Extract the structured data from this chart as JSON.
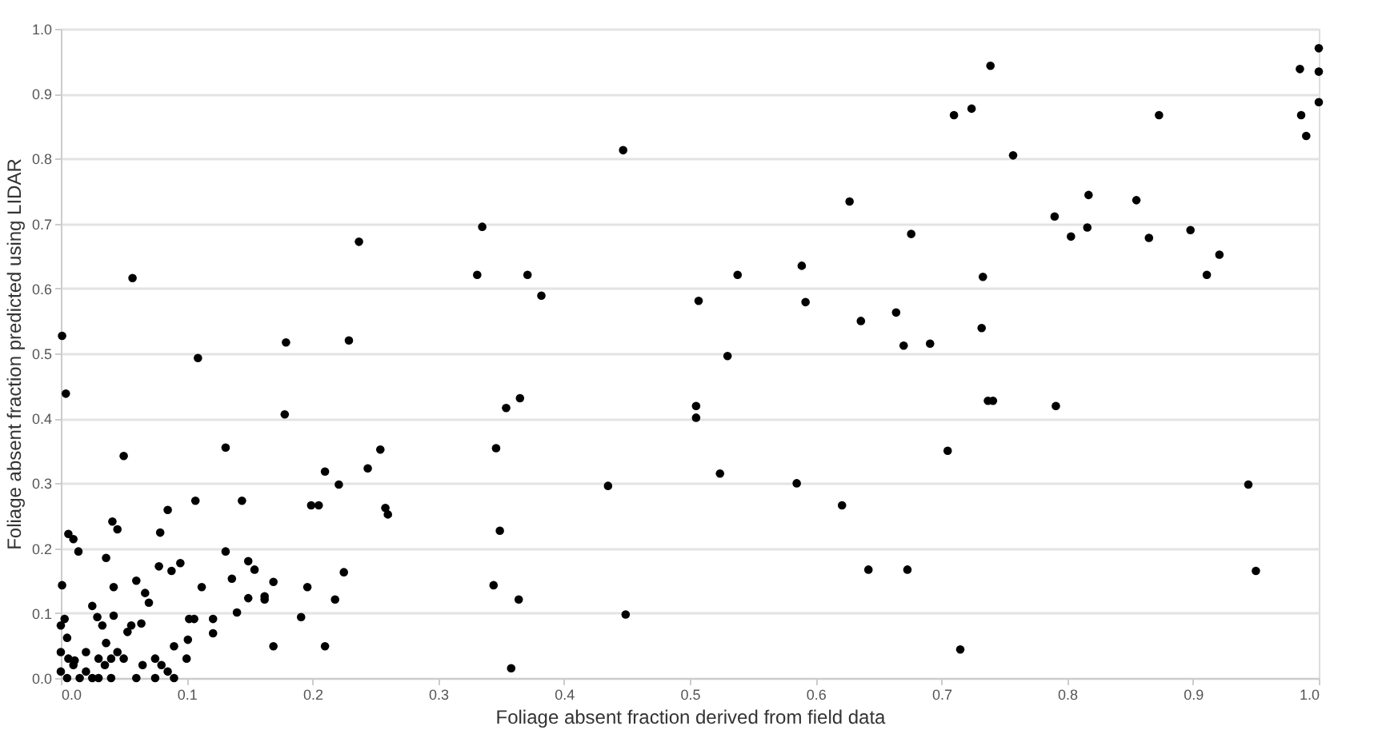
{
  "chart_data": {
    "type": "scatter",
    "xlabel": "Foliage absent fraction derived from field data",
    "ylabel": "Foliage absent fraction predicted using LIDAR",
    "grid": "y",
    "marker": "circle",
    "xlim": [
      0,
      1
    ],
    "ylim": [
      0,
      1
    ],
    "xticks": [
      {
        "value": 0,
        "label": "0.0"
      },
      {
        "value": 0.1,
        "label": "0.1"
      },
      {
        "value": 0.2,
        "label": "0.2"
      },
      {
        "value": 0.3,
        "label": "0.3"
      },
      {
        "value": 0.4,
        "label": "0.4"
      },
      {
        "value": 0.5,
        "label": "0.5"
      },
      {
        "value": 0.6,
        "label": "0.6"
      },
      {
        "value": 0.7,
        "label": "0.7"
      },
      {
        "value": 0.8,
        "label": "0.8"
      },
      {
        "value": 0.9,
        "label": "0.9"
      },
      {
        "value": 1,
        "label": "1.0"
      }
    ],
    "yticks": [
      {
        "value": 0,
        "label": "0.0"
      },
      {
        "value": 0.1,
        "label": "0.1"
      },
      {
        "value": 0.2,
        "label": "0.2"
      },
      {
        "value": 0.3,
        "label": "0.3"
      },
      {
        "value": 0.4,
        "label": "0.4"
      },
      {
        "value": 0.5,
        "label": "0.5"
      },
      {
        "value": 0.6,
        "label": "0.6"
      },
      {
        "value": 0.7,
        "label": "0.7"
      },
      {
        "value": 0.8,
        "label": "0.8"
      },
      {
        "value": 0.9,
        "label": "0.9"
      },
      {
        "value": 1,
        "label": "1.0"
      }
    ],
    "series": [
      {
        "color": "#000000",
        "x": [
          0.447,
          0.335,
          0.331,
          0.371,
          0.382,
          0.507,
          0.538,
          0.589,
          0.592,
          0.627,
          0.53,
          0.365,
          0.354,
          0.505,
          0.505,
          0.254,
          0.346,
          0.524,
          0.435,
          0.585,
          0.621,
          0.258,
          0.26,
          0.349,
          0.344,
          0.364,
          0.449,
          0.358,
          0.739,
          0.71,
          0.724,
          0.873,
          0.757,
          0.985,
          1.0,
          1.0,
          0.986,
          0.99,
          1.0,
          0.817,
          0.79,
          0.803,
          0.816,
          0.855,
          0.865,
          0.898,
          0.921,
          0.911,
          0.676,
          0.733,
          0.636,
          0.664,
          0.67,
          0.691,
          0.732,
          0.737,
          0.741,
          0.791,
          0.705,
          0.944,
          0.642,
          0.673,
          0.95,
          0.715,
          0.057,
          0.237,
          0.001,
          0.004,
          0.109,
          0.179,
          0.229,
          0.178,
          0.05,
          0.131,
          0.21,
          0.244,
          0.221,
          0.107,
          0.144,
          0.085,
          0.199,
          0.205,
          0.041,
          0.045,
          0.006,
          0.01,
          0.079,
          0.014,
          0.131,
          0.036,
          0.149,
          0.154,
          0.078,
          0.088,
          0.095,
          0.225,
          0.001,
          0.042,
          0.06,
          0.112,
          0.136,
          0.169,
          0.196,
          0.067,
          0.07,
          0.149,
          0.162,
          0.162,
          0.218,
          0.025,
          0.042,
          0.14,
          0.191,
          0.102,
          0.106,
          0.121,
          0.003,
          0.0,
          0.029,
          0.033,
          0.056,
          0.064,
          0.053,
          0.121,
          0.005,
          0.101,
          0.036,
          0.09,
          0.169,
          0.21,
          0.006,
          0.011,
          0.03,
          0.04,
          0.0,
          0.005,
          0.01,
          0.015,
          0.02,
          0.025,
          0.03,
          0.035,
          0.04,
          0.045,
          0.05,
          0.06,
          0.065,
          0.075,
          0.08,
          0.085,
          0.09,
          0.0,
          0.02,
          0.1,
          0.075
        ],
        "values": [
          0.813,
          0.695,
          0.621,
          0.621,
          0.589,
          0.581,
          0.621,
          0.635,
          0.579,
          0.734,
          0.496,
          0.431,
          0.416,
          0.419,
          0.401,
          0.352,
          0.354,
          0.315,
          0.296,
          0.3,
          0.266,
          0.262,
          0.252,
          0.227,
          0.143,
          0.121,
          0.098,
          0.015,
          0.943,
          0.867,
          0.877,
          0.867,
          0.805,
          0.938,
          0.97,
          0.934,
          0.867,
          0.835,
          0.887,
          0.744,
          0.711,
          0.68,
          0.694,
          0.736,
          0.678,
          0.69,
          0.652,
          0.621,
          0.684,
          0.618,
          0.55,
          0.563,
          0.512,
          0.515,
          0.539,
          0.427,
          0.427,
          0.419,
          0.35,
          0.298,
          0.167,
          0.167,
          0.165,
          0.044,
          0.616,
          0.672,
          0.527,
          0.438,
          0.493,
          0.517,
          0.52,
          0.406,
          0.342,
          0.355,
          0.318,
          0.323,
          0.298,
          0.273,
          0.273,
          0.259,
          0.266,
          0.266,
          0.241,
          0.229,
          0.222,
          0.214,
          0.224,
          0.195,
          0.195,
          0.185,
          0.18,
          0.167,
          0.172,
          0.165,
          0.177,
          0.163,
          0.143,
          0.14,
          0.15,
          0.14,
          0.153,
          0.148,
          0.14,
          0.131,
          0.116,
          0.123,
          0.126,
          0.121,
          0.121,
          0.111,
          0.096,
          0.101,
          0.094,
          0.091,
          0.091,
          0.091,
          0.091,
          0.081,
          0.094,
          0.081,
          0.081,
          0.084,
          0.071,
          0.069,
          0.062,
          0.059,
          0.054,
          0.049,
          0.049,
          0.049,
          0.03,
          0.027,
          0.03,
          0.03,
          0.01,
          0.0,
          0.02,
          0.0,
          0.01,
          0.0,
          0.0,
          0.02,
          0.0,
          0.04,
          0.03,
          0.0,
          0.02,
          0.03,
          0.02,
          0.01,
          0.0,
          0.04,
          0.04,
          0.03,
          0.0
        ]
      }
    ]
  }
}
